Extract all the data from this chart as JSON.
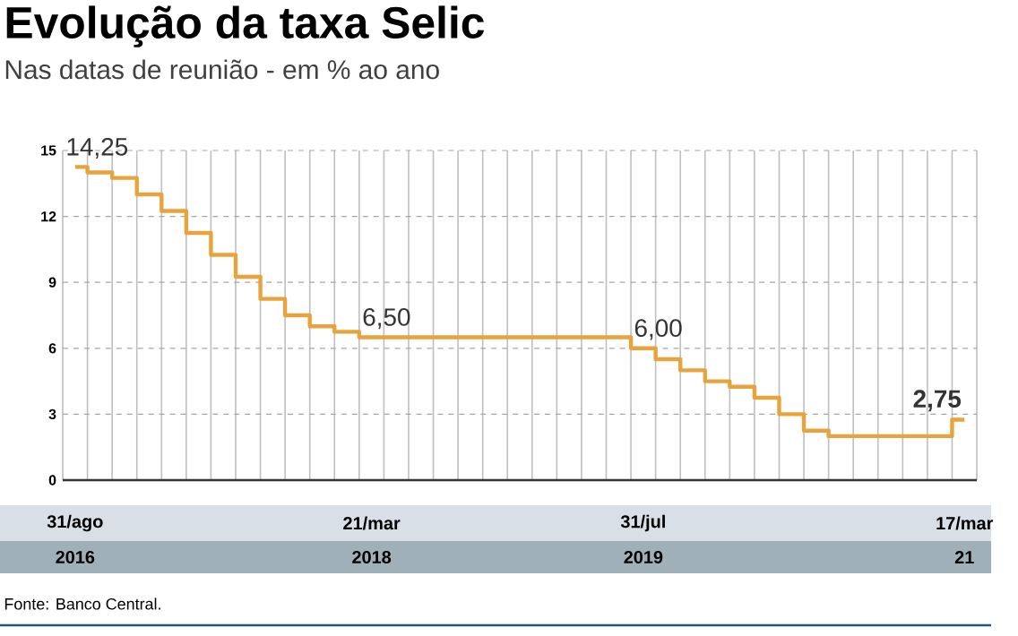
{
  "chart_data": {
    "type": "step",
    "title": "Evolução da taxa Selic",
    "subtitle": "Nas datas de reunião - em % ao ano",
    "categories": [
      "31/ago",
      null,
      null,
      null,
      null,
      null,
      null,
      null,
      null,
      null,
      null,
      null,
      "21/mar",
      null,
      null,
      null,
      null,
      null,
      null,
      null,
      null,
      null,
      null,
      "31/jul",
      null,
      null,
      null,
      null,
      null,
      null,
      null,
      null,
      null,
      null,
      null,
      null,
      "17/mar"
    ],
    "series": [
      {
        "color": "#e8a33d",
        "values": [
          14.25,
          14.0,
          13.75,
          13.0,
          12.25,
          11.25,
          10.25,
          9.25,
          8.25,
          7.5,
          7.0,
          6.75,
          6.5,
          6.5,
          6.5,
          6.5,
          6.5,
          6.5,
          6.5,
          6.5,
          6.5,
          6.5,
          6.5,
          6.0,
          5.5,
          5.0,
          4.5,
          4.25,
          3.75,
          3.0,
          2.25,
          2.0,
          2.0,
          2.0,
          2.0,
          2.0,
          2.75
        ],
        "value_labels": [
          "14,25",
          null,
          null,
          null,
          null,
          null,
          null,
          null,
          null,
          null,
          null,
          null,
          "6,50",
          null,
          null,
          null,
          null,
          null,
          null,
          null,
          null,
          null,
          null,
          "6,00",
          null,
          null,
          null,
          null,
          null,
          null,
          null,
          null,
          null,
          null,
          null,
          null,
          "2,75"
        ]
      }
    ],
    "ylim": [
      0,
      15
    ],
    "yticks": [
      0,
      3,
      6,
      9,
      12,
      15
    ],
    "grid": true,
    "annotations": [
      "2016",
      "2018",
      "2019",
      "21",
      "Fonte: Banco Central."
    ]
  }
}
